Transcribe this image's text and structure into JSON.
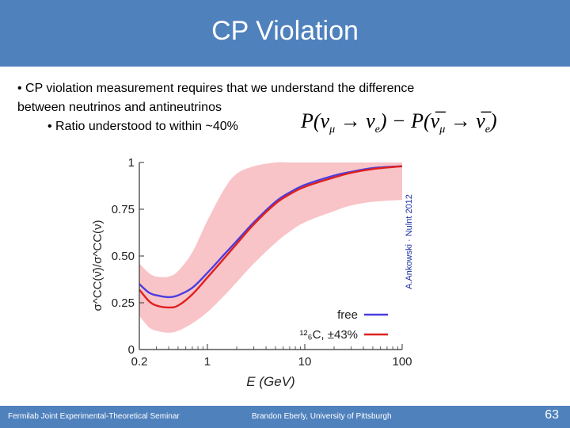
{
  "slide": {
    "title": "CP Violation",
    "bullet1_line1": "• CP violation measurement requires that we understand the difference",
    "bullet1_line2": "between neutrinos and antineutrinos",
    "bullet2": "• Ratio understood to within ~40%",
    "formula": {
      "p1": "P(ν",
      "s1": "μ",
      "arrow1": " → ν",
      "s2": "e",
      "mid": ") − P(",
      "nubar1": "ν̅",
      "s3": "μ",
      "arrow2": " → ",
      "nubar2": "ν̅",
      "s4": "e",
      "end": ")"
    },
    "footer_left": "Fermilab Joint Experimental-Theoretical Seminar",
    "footer_center": "Brandon Eberly, University of Pittsburgh",
    "page_number": "63"
  },
  "colors": {
    "header": "#4f81bd",
    "band": "#f8c4c8",
    "free_line": "#4a3ee0",
    "carbon_line": "#e0201e"
  },
  "chart_data": {
    "type": "line",
    "xscale": "log",
    "xlim": [
      0.2,
      100
    ],
    "ylim": [
      0,
      1
    ],
    "xlabel": "E (GeV)",
    "ylabel": "σ^CC(ν̄)/σ^CC(ν)",
    "xticks": [
      "0.2",
      "1",
      "10",
      "100"
    ],
    "yticks": [
      "0",
      "0.25",
      "0.50",
      "0.75",
      "1"
    ],
    "credit": "A.Ankowski · Nulnt 2012",
    "series": [
      {
        "name": "free",
        "x": [
          0.2,
          0.25,
          0.3,
          0.4,
          0.5,
          0.7,
          1,
          1.5,
          2,
          3,
          5,
          7,
          10,
          20,
          30,
          50,
          100
        ],
        "y": [
          0.35,
          0.305,
          0.29,
          0.28,
          0.29,
          0.33,
          0.41,
          0.51,
          0.58,
          0.68,
          0.79,
          0.84,
          0.88,
          0.93,
          0.95,
          0.97,
          0.98
        ]
      },
      {
        "name": "¹²₆C, ±43%",
        "x": [
          0.2,
          0.25,
          0.3,
          0.4,
          0.5,
          0.7,
          1,
          1.5,
          2,
          3,
          5,
          7,
          10,
          20,
          30,
          50,
          100
        ],
        "y": [
          0.32,
          0.26,
          0.235,
          0.225,
          0.235,
          0.295,
          0.385,
          0.49,
          0.565,
          0.67,
          0.78,
          0.83,
          0.87,
          0.92,
          0.945,
          0.965,
          0.98
        ]
      }
    ],
    "band": {
      "x": [
        0.2,
        0.25,
        0.3,
        0.4,
        0.5,
        0.7,
        1,
        1.5,
        2,
        3,
        5,
        7,
        10,
        20,
        30,
        50,
        100
      ],
      "upper": [
        0.46,
        0.41,
        0.39,
        0.39,
        0.42,
        0.52,
        0.69,
        0.86,
        0.94,
        0.98,
        1.0,
        1.0,
        1.0,
        1.0,
        1.0,
        1.0,
        1.0
      ],
      "lower": [
        0.18,
        0.12,
        0.1,
        0.09,
        0.1,
        0.14,
        0.2,
        0.29,
        0.36,
        0.46,
        0.57,
        0.63,
        0.68,
        0.74,
        0.77,
        0.79,
        0.8
      ]
    }
  }
}
